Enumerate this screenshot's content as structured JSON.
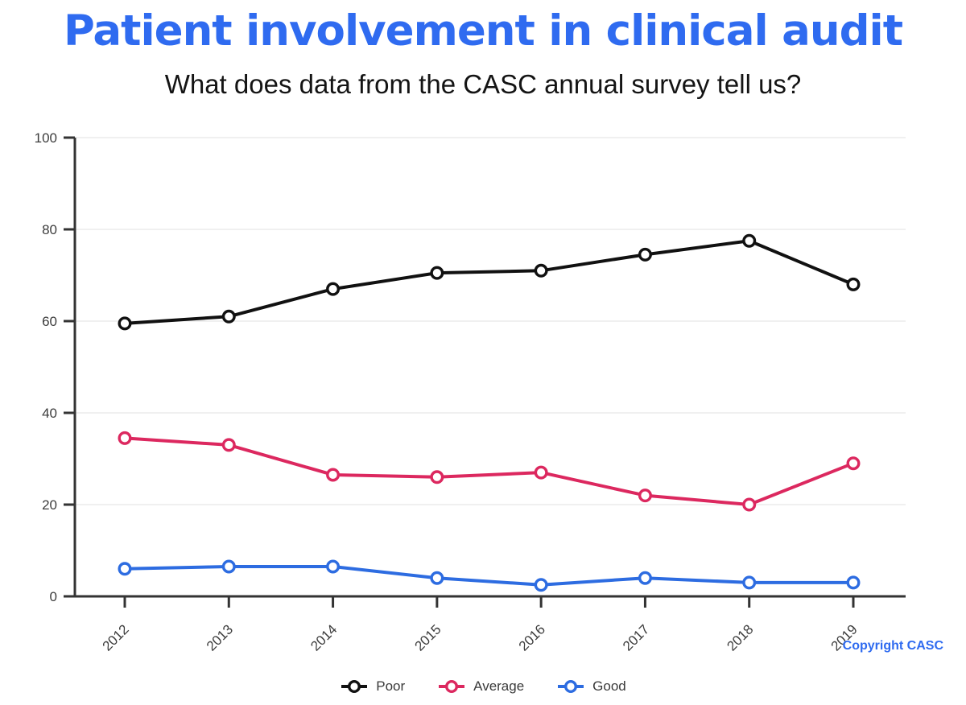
{
  "header": {
    "title": "Patient involvement in clinical audit",
    "subtitle": "What does data from the CASC annual survey tell us?"
  },
  "footer": {
    "copyright": "Copyright CASC"
  },
  "colors": {
    "title_blue": "#2f6bf0",
    "poor": "#111111",
    "average": "#dc285f",
    "good": "#2d6ce1",
    "grid": "#ececec",
    "axis": "#333333",
    "tick_label": "#3c3c3c",
    "marker_fill": "#ffffff"
  },
  "chart_data": {
    "type": "line",
    "x": [
      "2012",
      "2013",
      "2014",
      "2015",
      "2016",
      "2017",
      "2018",
      "2019"
    ],
    "series": [
      {
        "name": "Poor",
        "color_key": "poor",
        "values": [
          59.5,
          61,
          67,
          70.5,
          71,
          74.5,
          77.5,
          68
        ]
      },
      {
        "name": "Average",
        "color_key": "average",
        "values": [
          34.5,
          33,
          26.5,
          26,
          27,
          22,
          20,
          29
        ]
      },
      {
        "name": "Good",
        "color_key": "good",
        "values": [
          6,
          6.5,
          6.5,
          4,
          2.5,
          4,
          3,
          3
        ]
      }
    ],
    "title": "",
    "xlabel": "",
    "ylabel": "",
    "ylim": [
      0,
      100
    ],
    "yticks": [
      0,
      20,
      40,
      60,
      80,
      100
    ],
    "grid": true,
    "legend_position": "bottom",
    "x_label_rotation": -45
  }
}
